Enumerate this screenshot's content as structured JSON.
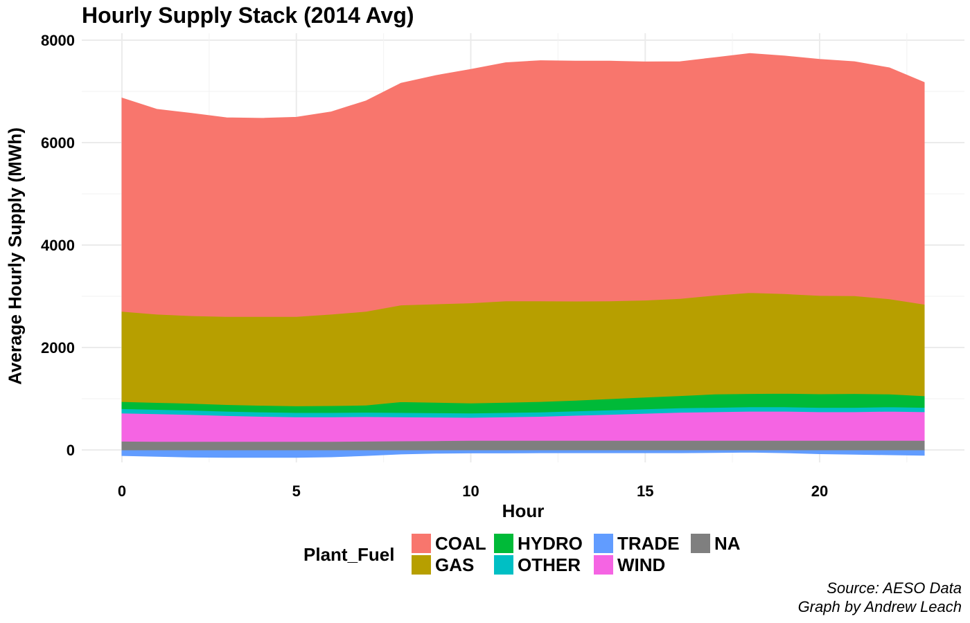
{
  "chart_data": {
    "type": "area",
    "stacked": true,
    "title": "Hourly Supply Stack (2014 Avg)",
    "xlabel": "Hour",
    "ylabel": "Average Hourly Supply (MWh)",
    "xlim": [
      0,
      23
    ],
    "ylim": [
      -200,
      8000
    ],
    "x_ticks": [
      0,
      5,
      10,
      15,
      20
    ],
    "y_ticks": [
      0,
      2000,
      4000,
      6000,
      8000
    ],
    "grid": true,
    "legend_position": "bottom",
    "legend_title": "Plant_Fuel",
    "x": [
      0,
      1,
      2,
      3,
      4,
      5,
      6,
      7,
      8,
      9,
      10,
      11,
      12,
      13,
      14,
      15,
      16,
      17,
      18,
      19,
      20,
      21,
      22,
      23
    ],
    "negative_series": [
      {
        "name": "TRADE",
        "color": "#619CFF",
        "values": [
          -110,
          -125,
          -140,
          -145,
          -145,
          -145,
          -135,
          -110,
          -80,
          -65,
          -60,
          -60,
          -55,
          -55,
          -55,
          -55,
          -55,
          -50,
          -45,
          -55,
          -75,
          -85,
          -95,
          -105
        ]
      }
    ],
    "series": [
      {
        "name": "NA",
        "color": "#7F7F7F",
        "values": [
          170,
          165,
          165,
          165,
          165,
          165,
          165,
          170,
          175,
          180,
          185,
          185,
          185,
          185,
          185,
          185,
          185,
          185,
          185,
          185,
          185,
          185,
          185,
          185
        ]
      },
      {
        "name": "WIND",
        "color": "#F564E3",
        "values": [
          550,
          540,
          525,
          505,
          490,
          480,
          480,
          480,
          470,
          460,
          450,
          460,
          470,
          490,
          510,
          530,
          550,
          560,
          570,
          570,
          560,
          560,
          570,
          560
        ]
      },
      {
        "name": "OTHER",
        "color": "#00BFC4",
        "values": [
          85,
          85,
          85,
          85,
          85,
          85,
          85,
          85,
          85,
          85,
          85,
          85,
          85,
          85,
          85,
          85,
          85,
          85,
          85,
          85,
          85,
          85,
          85,
          85
        ]
      },
      {
        "name": "HYDRO",
        "color": "#00BA38",
        "values": [
          140,
          135,
          135,
          130,
          130,
          130,
          135,
          140,
          210,
          205,
          195,
          200,
          205,
          210,
          220,
          230,
          240,
          260,
          260,
          265,
          265,
          270,
          250,
          225
        ]
      },
      {
        "name": "GAS",
        "color": "#B79F00",
        "values": [
          1760,
          1725,
          1710,
          1720,
          1735,
          1745,
          1785,
          1830,
          1890,
          1920,
          1955,
          1980,
          1965,
          1935,
          1910,
          1895,
          1895,
          1930,
          1970,
          1945,
          1920,
          1910,
          1860,
          1790
        ]
      },
      {
        "name": "COAL",
        "color": "#F8766D",
        "values": [
          4165,
          4000,
          3950,
          3880,
          3870,
          3890,
          3950,
          4110,
          4330,
          4460,
          4560,
          4650,
          4690,
          4685,
          4680,
          4650,
          4625,
          4640,
          4670,
          4640,
          4610,
          4570,
          4510,
          4330
        ]
      }
    ],
    "legend_order": [
      "COAL",
      "GAS",
      "HYDRO",
      "OTHER",
      "TRADE",
      "WIND",
      "NA"
    ],
    "caption_lines": [
      "Source: AESO Data",
      "Graph by Andrew Leach"
    ]
  }
}
